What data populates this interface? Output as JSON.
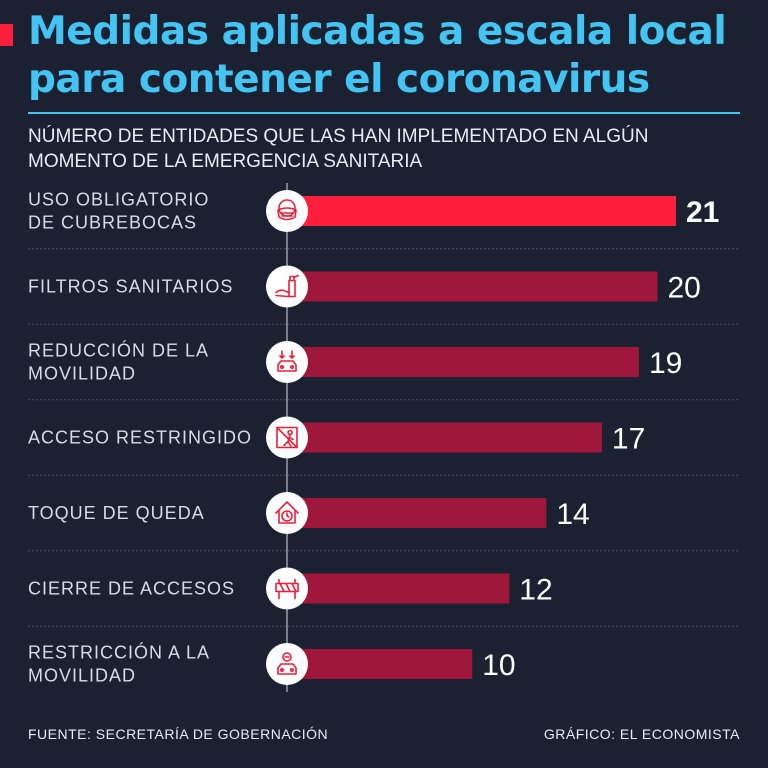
{
  "title": "Medidas aplicadas a escala local para contener el coronavirus",
  "subtitle": "NÚMERO DE ENTIDADES QUE LAS HAN IMPLEMENTADO EN ALGÚN MOMENTO DE LA EMERGENCIA SANITARIA",
  "colors": {
    "background": "#1b2131",
    "title": "#43c4f2",
    "bar_top": "#ff1f3d",
    "bar": "#a0173c",
    "accent": "#ff1f3d"
  },
  "chart_data": {
    "type": "bar",
    "orientation": "horizontal",
    "title": "Medidas aplicadas a escala local para contener el coronavirus",
    "subtitle": "NÚMERO DE ENTIDADES QUE LAS HAN IMPLEMENTADO EN ALGÚN MOMENTO DE LA EMERGENCIA SANITARIA",
    "xlim": [
      0,
      21
    ],
    "bars": [
      {
        "label_lines": [
          "USO OBLIGATORIO",
          "DE CUBREBOCAS"
        ],
        "value": 21,
        "display": "21",
        "icon": "face-mask-icon",
        "highlight": true
      },
      {
        "label_lines": [
          "FILTROS SANITARIOS"
        ],
        "value": 20,
        "display": "20",
        "icon": "hand-sanitizer-icon",
        "highlight": false
      },
      {
        "label_lines": [
          "REDUCCIÓN DE LA",
          "MOVILIDAD"
        ],
        "value": 19,
        "display": "19",
        "icon": "car-reduction-icon",
        "highlight": false
      },
      {
        "label_lines": [
          "ACCESO RESTRINGIDO"
        ],
        "value": 17,
        "display": "17",
        "icon": "no-entry-icon",
        "highlight": false
      },
      {
        "label_lines": [
          "TOQUE DE QUEDA"
        ],
        "value": 14,
        "display": "14",
        "icon": "house-clock-icon",
        "highlight": false
      },
      {
        "label_lines": [
          "CIERRE DE ACCESOS"
        ],
        "value": 12,
        "display": "12",
        "icon": "barrier-icon",
        "highlight": false
      },
      {
        "label_lines": [
          "RESTRICCIÓN A LA",
          "MOVILIDAD"
        ],
        "value": 10,
        "display": "10",
        "icon": "car-restriction-icon",
        "highlight": false
      }
    ]
  },
  "footer": {
    "source": "FUENTE: SECRETARÍA DE GOBERNACIÓN",
    "credit": "GRÁFICO: EL ECONOMISTA"
  }
}
